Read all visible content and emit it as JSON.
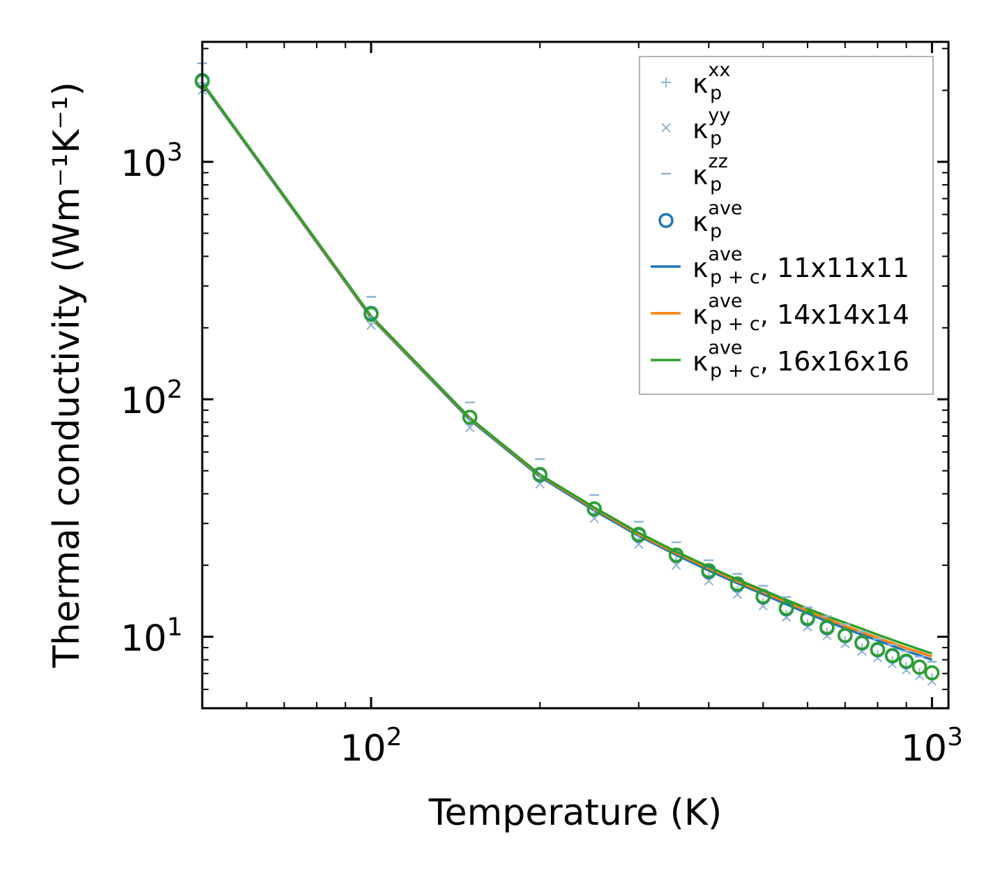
{
  "chart_data": {
    "type": "line",
    "x_scale": "log",
    "y_scale": "log",
    "xlim": [
      50,
      1070
    ],
    "ylim": [
      5,
      3200
    ],
    "xlabel": "Temperature (K)",
    "ylabel": "Thermal conductivity (Wm⁻¹K⁻¹)",
    "x_ticks": [
      {
        "value": 100,
        "base": "10",
        "exp": "2"
      },
      {
        "value": 1000,
        "base": "10",
        "exp": "3"
      }
    ],
    "y_ticks": [
      {
        "value": 10,
        "base": "10",
        "exp": "1"
      },
      {
        "value": 100,
        "base": "10",
        "exp": "2"
      },
      {
        "value": 1000,
        "base": "10",
        "exp": "3"
      }
    ],
    "x": [
      50,
      100,
      150,
      200,
      250,
      300,
      350,
      400,
      450,
      500,
      550,
      600,
      650,
      700,
      750,
      800,
      850,
      900,
      950,
      1000
    ],
    "series": [
      {
        "name": "κp^xx",
        "kind": "marker",
        "marker": "plus",
        "color": "#8fb4d3",
        "values": [
          2150,
          215,
          80,
          46,
          33,
          25.5,
          20.8,
          17.8,
          15.6,
          13.9,
          12.4,
          11.3,
          10.4,
          9.6,
          8.95,
          8.4,
          7.9,
          7.45,
          7.05,
          6.7
        ]
      },
      {
        "name": "κp^yy",
        "kind": "marker",
        "marker": "x",
        "color": "#8fb4d3",
        "values": [
          2000,
          205,
          76,
          44,
          31.5,
          24.5,
          20,
          17.2,
          15.1,
          13.5,
          12.1,
          11,
          10.1,
          9.35,
          8.7,
          8.15,
          7.7,
          7.25,
          6.85,
          6.5
        ]
      },
      {
        "name": "κp^zz",
        "kind": "marker",
        "marker": "dash",
        "color": "#8fb4d3",
        "values": [
          2600,
          270,
          97,
          56,
          39.5,
          30.5,
          25,
          21,
          18.4,
          16.4,
          14.7,
          13.3,
          12.2,
          11.3,
          10.5,
          9.8,
          9.25,
          8.7,
          8.25,
          7.85
        ]
      },
      {
        "name": "κp^ave",
        "kind": "circle",
        "color": "#1f77b4",
        "values": [
          2200,
          230,
          84,
          48,
          34.5,
          26.8,
          22,
          18.8,
          16.6,
          14.7,
          13.1,
          11.9,
          10.9,
          10.1,
          9.4,
          8.8,
          8.3,
          7.85,
          7.45,
          7.05
        ]
      },
      {
        "name": "κp+c^ave, 11x11x11",
        "kind": "line",
        "color": "#1f77b4",
        "values": [
          2130,
          220,
          82,
          47.2,
          34,
          26.6,
          22.1,
          19,
          16.8,
          15.1,
          13.7,
          12.55,
          11.6,
          10.85,
          10.2,
          9.65,
          9.15,
          8.7,
          8.35,
          8.0
        ]
      },
      {
        "name": "κp+c^ave, 14x14x14",
        "kind": "line",
        "color": "#ff7f0e",
        "values": [
          2150,
          222,
          83,
          47.8,
          34.6,
          27,
          22.5,
          19.4,
          17.1,
          15.4,
          14.0,
          12.85,
          11.9,
          11.1,
          10.45,
          9.9,
          9.4,
          8.95,
          8.6,
          8.25
        ]
      },
      {
        "name": "κp+c^ave, 16x16x16",
        "kind": "line",
        "color": "#2ca02c",
        "values": [
          2160,
          224,
          83.5,
          48.2,
          35,
          27.4,
          22.8,
          19.7,
          17.4,
          15.7,
          14.3,
          13.15,
          12.2,
          11.45,
          10.8,
          10.2,
          9.7,
          9.25,
          8.85,
          8.5
        ]
      },
      {
        "name": "κp^ave (16x16x16 circles)",
        "kind": "circle",
        "color": "#2ca02c",
        "legend": false,
        "values": [
          2180,
          228,
          84,
          48.3,
          34.6,
          27,
          22.1,
          19,
          16.7,
          14.8,
          13.2,
          12,
          11,
          10.15,
          9.45,
          8.85,
          8.35,
          7.9,
          7.45,
          7.05
        ]
      }
    ],
    "legend": {
      "position": "top-right",
      "entries": [
        {
          "kind": "plus",
          "color": "#8fb4d3",
          "base": "κ",
          "sup": "xx",
          "sub": "p",
          "suffix": ""
        },
        {
          "kind": "x",
          "color": "#8fb4d3",
          "base": "κ",
          "sup": "yy",
          "sub": "p",
          "suffix": ""
        },
        {
          "kind": "dash",
          "color": "#8fb4d3",
          "base": "κ",
          "sup": "zz",
          "sub": "p",
          "suffix": ""
        },
        {
          "kind": "circle",
          "color": "#1f77b4",
          "base": "κ",
          "sup": "ave",
          "sub": "p",
          "suffix": ""
        },
        {
          "kind": "line",
          "color": "#1f77b4",
          "base": "κ",
          "sup": "ave",
          "sub": "p + c",
          "suffix": ", 11x11x11"
        },
        {
          "kind": "line",
          "color": "#ff7f0e",
          "base": "κ",
          "sup": "ave",
          "sub": "p + c",
          "suffix": ", 14x14x14"
        },
        {
          "kind": "line",
          "color": "#2ca02c",
          "base": "κ",
          "sup": "ave",
          "sub": "p + c",
          "suffix": ", 16x16x16"
        }
      ]
    }
  }
}
